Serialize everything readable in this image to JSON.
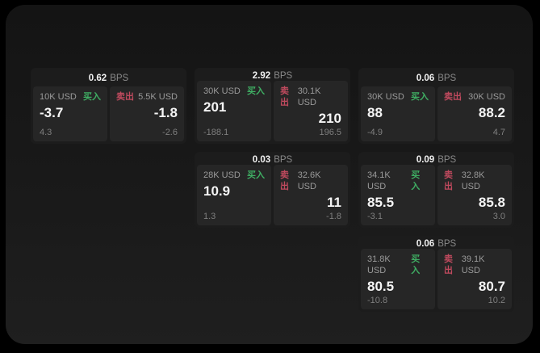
{
  "labels": {
    "bps_unit": "BPS",
    "buy": "买入",
    "sell": "卖出"
  },
  "colors": {
    "buy_green": "#3fae63",
    "sell_red": "#c04a5e",
    "surface": "#1a1a1a",
    "card": "#1c1c1c",
    "tile": "#262626"
  },
  "cards": [
    {
      "bps": "0.62",
      "row": 1,
      "col": 1,
      "buy": {
        "amount": "10K USD",
        "price": "-3.7",
        "delta": "4.3"
      },
      "sell": {
        "amount": "5.5K USD",
        "price": "-1.8",
        "delta": "-2.6"
      }
    },
    {
      "bps": "2.92",
      "row": 1,
      "col": 2,
      "buy": {
        "amount": "30K USD",
        "price": "201",
        "delta": "-188.1"
      },
      "sell": {
        "amount": "30.1K USD",
        "price": "210",
        "delta": "196.5"
      }
    },
    {
      "bps": "0.06",
      "row": 1,
      "col": 3,
      "buy": {
        "amount": "30K USD",
        "price": "88",
        "delta": "-4.9"
      },
      "sell": {
        "amount": "30K USD",
        "price": "88.2",
        "delta": "4.7"
      }
    },
    {
      "bps": "0.03",
      "row": 2,
      "col": 2,
      "buy": {
        "amount": "28K USD",
        "price": "10.9",
        "delta": "1.3"
      },
      "sell": {
        "amount": "32.6K USD",
        "price": "11",
        "delta": "-1.8"
      }
    },
    {
      "bps": "0.09",
      "row": 2,
      "col": 3,
      "buy": {
        "amount": "34.1K USD",
        "price": "85.5",
        "delta": "-3.1"
      },
      "sell": {
        "amount": "32.8K USD",
        "price": "85.8",
        "delta": "3.0"
      }
    },
    {
      "bps": "0.06",
      "row": 3,
      "col": 3,
      "buy": {
        "amount": "31.8K USD",
        "price": "80.5",
        "delta": "-10.8"
      },
      "sell": {
        "amount": "39.1K USD",
        "price": "80.7",
        "delta": "10.2"
      }
    }
  ]
}
